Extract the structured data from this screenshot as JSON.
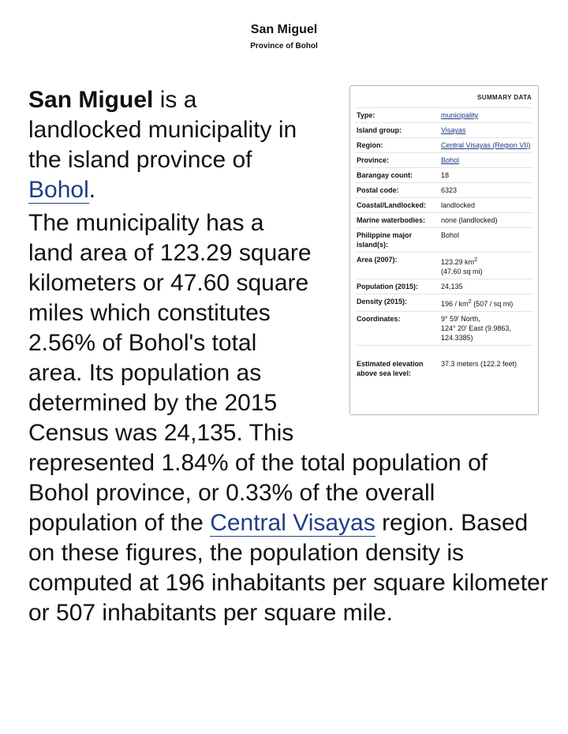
{
  "header": {
    "title": "San Miguel",
    "subtitle": "Province of Bohol"
  },
  "summary": {
    "heading": "Summary data",
    "rows": [
      {
        "label": "Type:",
        "value": "municipality"
      },
      {
        "label": "Island group:",
        "value": "Visayas"
      },
      {
        "label": "Region:",
        "value": "Central Visayas (Region VII)"
      },
      {
        "label": "Province:",
        "value": "Bohol"
      },
      {
        "label": "Barangay count:",
        "value": "18"
      },
      {
        "label": "Postal code:",
        "value": "6323"
      },
      {
        "label": "Coastal/Landlocked:",
        "value": "landlocked"
      },
      {
        "label": "Marine waterbodies:",
        "value": "none (landlocked)"
      },
      {
        "label": "Philippine major island(s):",
        "value": "Bohol"
      },
      {
        "label": "Area (2007):",
        "value_line1": "123.29 km",
        "value_sup": "2",
        "value_line2": "(47.60 sq mi)"
      },
      {
        "label": "Population (2015):",
        "value": "24,135"
      },
      {
        "label": "Density (2015):",
        "value_pre": "196 / km",
        "value_sup": "2",
        "value_post": " (507 / sq mi)"
      },
      {
        "label": "Coordinates:",
        "value_line1": "9° 59′ North,",
        "value_line2": "124° 20′ East (9.9863, 124.3385)"
      },
      {
        "label": "Estimated elevation above sea level:",
        "value": "37.3 meters (122.2 feet)"
      }
    ]
  },
  "article": {
    "p1_name": "San Miguel",
    "p1_text": " is a landlocked municipality in the island province of ",
    "p1_link": "Bohol",
    "p1_end": ".",
    "p2_text_a": "The municipality has a land area of 123.29 square kilometers or 47.60 square miles which constitutes 2.56% of Bohol's total area. Its population as determined by the 2015 Census was 24,135. This represented 1.84% of the total population of Bohol province, or 0.33% of the overall population of the ",
    "p2_link": "Central Visayas",
    "p2_text_b": " region. Based on these figures, the population density is computed at 196 inhabitants per square kilometer or 507 inhabitants per square mile."
  }
}
